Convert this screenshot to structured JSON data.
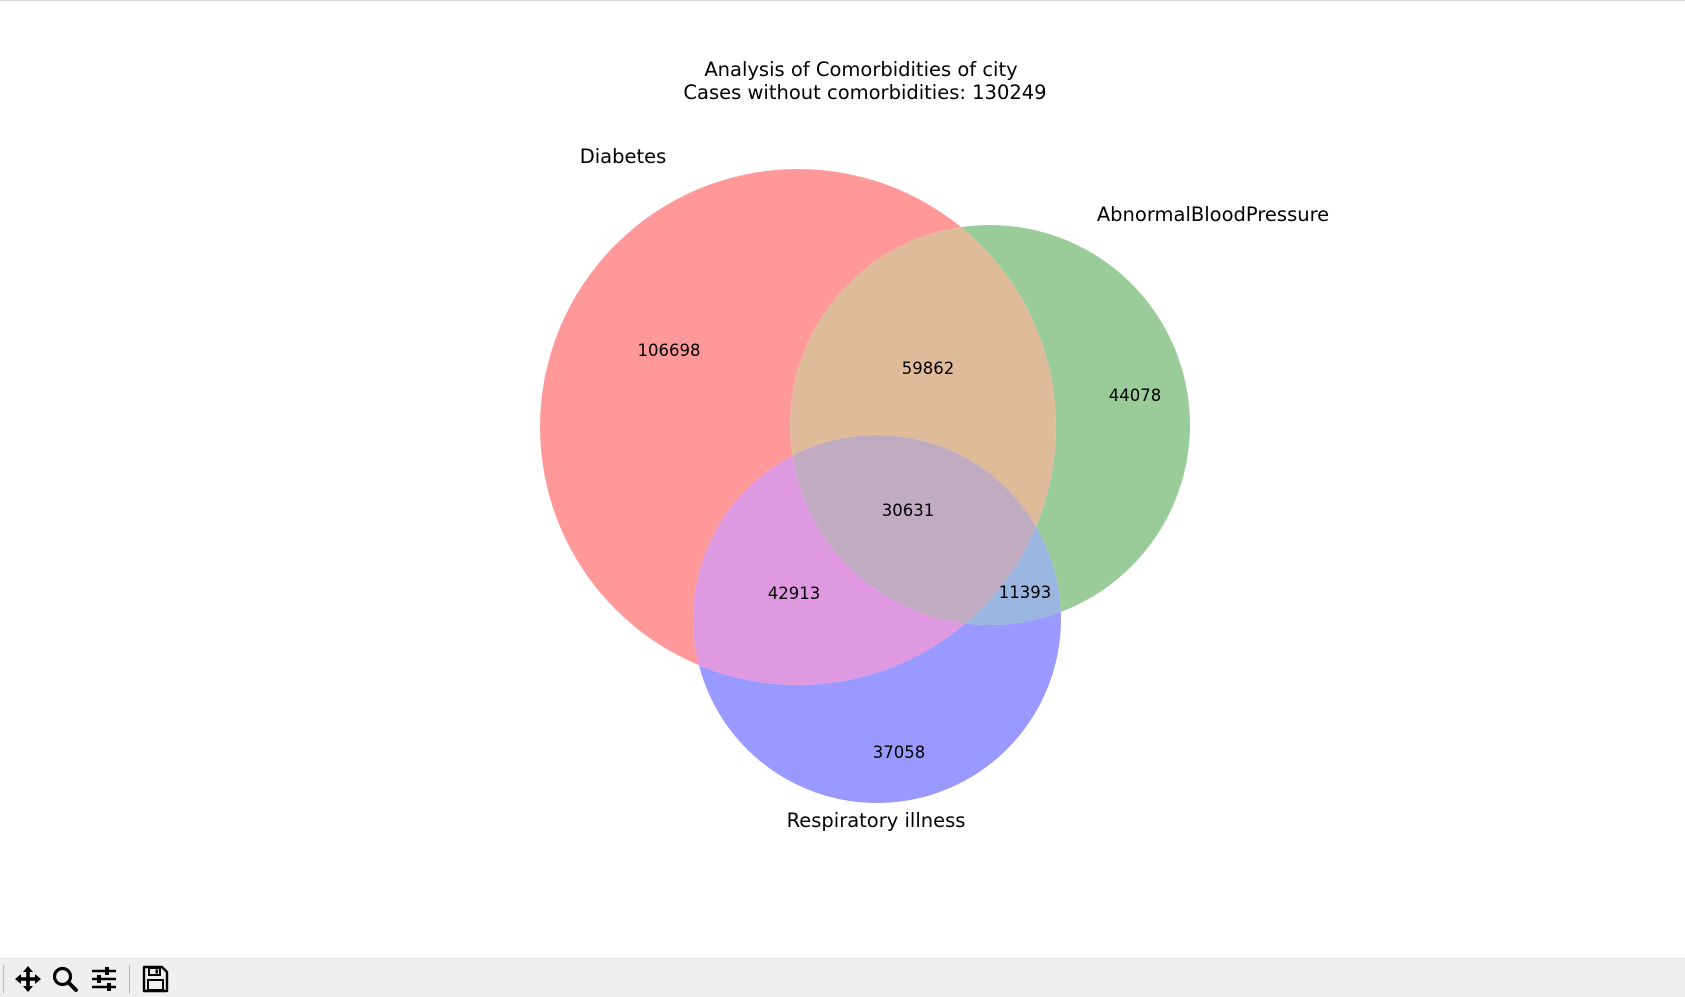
{
  "chart_data": {
    "type": "venn3",
    "title": "Analysis of Comorbidities of city",
    "subtitle": "Cases without comorbidities: 130249",
    "sets": [
      {
        "label": "Diabetes",
        "color": "#ff9999"
      },
      {
        "label": "AbnormalBloodPressure",
        "color": "#99cc99"
      },
      {
        "label": "Respiratory illness",
        "color": "#9999ff"
      }
    ],
    "regions": [
      {
        "id": "100",
        "sets": [
          "Diabetes"
        ],
        "value": 106698
      },
      {
        "id": "010",
        "sets": [
          "AbnormalBloodPressure"
        ],
        "value": 44078
      },
      {
        "id": "001",
        "sets": [
          "Respiratory illness"
        ],
        "value": 37058
      },
      {
        "id": "110",
        "sets": [
          "Diabetes",
          "AbnormalBloodPressure"
        ],
        "value": 59862
      },
      {
        "id": "101",
        "sets": [
          "Diabetes",
          "Respiratory illness"
        ],
        "value": 42913
      },
      {
        "id": "011",
        "sets": [
          "AbnormalBloodPressure",
          "Respiratory illness"
        ],
        "value": 11393
      },
      {
        "id": "111",
        "sets": [
          "Diabetes",
          "AbnormalBloodPressure",
          "Respiratory illness"
        ],
        "value": 30631
      }
    ],
    "colors": {
      "100": "#ff9999",
      "010": "#99cc99",
      "001": "#9999ff",
      "110": "#e0bb99",
      "101": "#df99e0",
      "011": "#99b5e0",
      "111": "#c0abc0"
    }
  },
  "toolbar": {
    "buttons": [
      {
        "name": "pan-button",
        "icon": "move-arrows-icon"
      },
      {
        "name": "zoom-button",
        "icon": "magnifier-icon"
      },
      {
        "name": "configure-subplots-button",
        "icon": "sliders-icon"
      },
      {
        "name": "save-button",
        "icon": "floppy-disk-icon"
      }
    ]
  }
}
